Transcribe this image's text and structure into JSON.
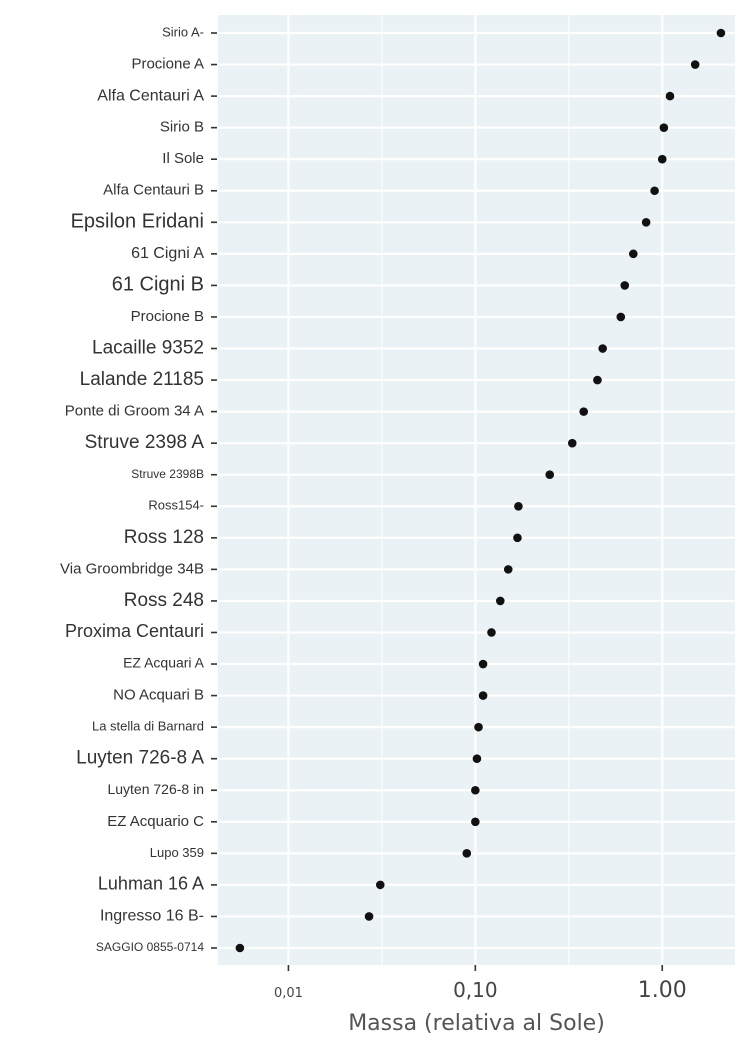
{
  "chart_data": {
    "type": "scatter",
    "title": "",
    "xlabel": "Massa (relativa al Sole)",
    "ylabel": "",
    "x_scale": "log",
    "xlim": [
      0.0042,
      2.45
    ],
    "x_ticks": [
      {
        "value": 0.01,
        "label": "0,01"
      },
      {
        "value": 0.1,
        "label": "0,10"
      },
      {
        "value": 1,
        "label": "1.00"
      }
    ],
    "grid": true,
    "colors": {
      "panel": "#eaf2f5",
      "grid": "#ffffff",
      "point": "#111111",
      "tick": "#333333"
    },
    "points": [
      {
        "name": "Sirio A",
        "label": "Sirio A-",
        "mass": 2.06
      },
      {
        "name": "Procione A",
        "label": "Procione A",
        "mass": 1.5
      },
      {
        "name": "Alfa Centauri A",
        "label": "Alfa Centauri A",
        "mass": 1.1
      },
      {
        "name": "Sirio B",
        "label": "Sirio B",
        "mass": 1.02
      },
      {
        "name": "Il Sole",
        "label": "Il Sole",
        "mass": 1.0
      },
      {
        "name": "Alfa Centauri B",
        "label": "Alfa Centauri B",
        "mass": 0.91
      },
      {
        "name": "Epsilon Eridani",
        "label": "Epsilon Eridani",
        "mass": 0.82
      },
      {
        "name": "61 Cigni A",
        "label": "61 Cigni A",
        "mass": 0.7
      },
      {
        "name": "61 Cigni B",
        "label": "61 Cigni B",
        "mass": 0.63
      },
      {
        "name": "Procione B",
        "label": "Procione B",
        "mass": 0.6
      },
      {
        "name": "Lacaille 9352",
        "label": "Lacaille 9352",
        "mass": 0.48
      },
      {
        "name": "Lalande 21185",
        "label": "Lalande 21185",
        "mass": 0.45
      },
      {
        "name": "Ponte di Groom 34 A",
        "label": "Ponte di Groom 34 A",
        "mass": 0.38
      },
      {
        "name": "Struve 2398 A",
        "label": "Struve 2398 A",
        "mass": 0.33
      },
      {
        "name": "Struve 2398B",
        "label": "Struve 2398B",
        "mass": 0.25
      },
      {
        "name": "Ross154",
        "label": "Ross154-",
        "mass": 0.17
      },
      {
        "name": "Ross 128",
        "label": "Ross 128",
        "mass": 0.168
      },
      {
        "name": "Via Groombridge 34B",
        "label": "Via Groombridge 34B",
        "mass": 0.15
      },
      {
        "name": "Ross 248",
        "label": "Ross 248",
        "mass": 0.136
      },
      {
        "name": "Proxima Centauri",
        "label": "Proxima Centauri",
        "mass": 0.122
      },
      {
        "name": "EZ Acquari A",
        "label": "EZ Acquari A",
        "mass": 0.11
      },
      {
        "name": "NO Acquari B",
        "label": "NO Acquari B",
        "mass": 0.11
      },
      {
        "name": "La stella di Barnard",
        "label": "La stella di Barnard",
        "mass": 0.104
      },
      {
        "name": "Luyten 726-8 A",
        "label": "Luyten 726-8 A",
        "mass": 0.102
      },
      {
        "name": "Luyten 726-8 in",
        "label": "Luyten 726-8 in",
        "mass": 0.1
      },
      {
        "name": "EZ Acquario C",
        "label": "EZ Acquario C",
        "mass": 0.1
      },
      {
        "name": "Lupo 359",
        "label": "Lupo 359",
        "mass": 0.09
      },
      {
        "name": "Luhman 16 A",
        "label": "Luhman 16 A",
        "mass": 0.031
      },
      {
        "name": "Ingresso 16 B",
        "label": "Ingresso 16 B-",
        "mass": 0.027
      },
      {
        "name": "SAGGIO 0855-0714",
        "label": "SAGGIO 0855-0714",
        "mass": 0.0055
      }
    ]
  }
}
